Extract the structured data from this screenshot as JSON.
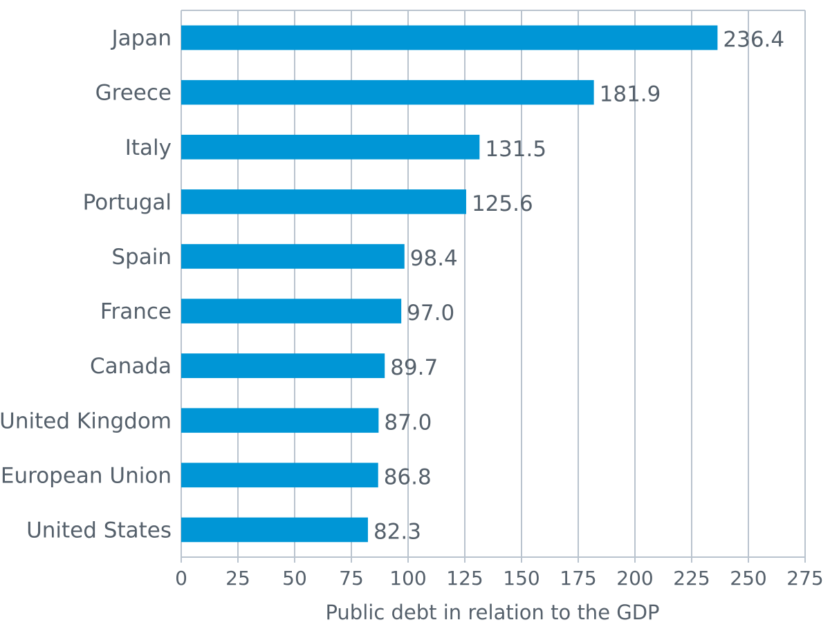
{
  "chart_data": {
    "type": "bar",
    "orientation": "horizontal",
    "categories": [
      "Japan",
      "Greece",
      "Italy",
      "Portugal",
      "Spain",
      "France",
      "Canada",
      "United Kingdom",
      "European Union",
      "United States"
    ],
    "values": [
      236.4,
      181.9,
      131.5,
      125.6,
      98.4,
      97.0,
      89.7,
      87.0,
      86.8,
      82.3
    ],
    "value_labels": [
      "236.4",
      "181.9",
      "131.5",
      "125.6",
      "98.4",
      "97.0",
      "89.7",
      "87.0",
      "86.8",
      "82.3"
    ],
    "xlim": [
      0,
      275
    ],
    "x_ticks": [
      0,
      25,
      50,
      75,
      100,
      125,
      150,
      175,
      200,
      225,
      250,
      275
    ],
    "xlabel": "Public debt in relation to the GDP",
    "ylabel": "",
    "title": "",
    "grid": true,
    "bar_color": "#0096d6"
  }
}
